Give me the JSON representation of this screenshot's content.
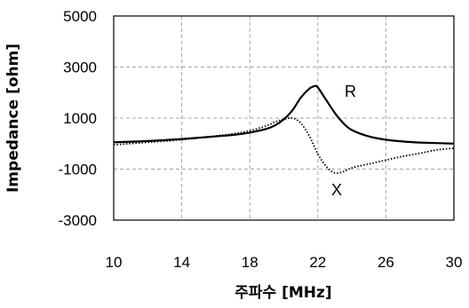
{
  "chart_data": {
    "type": "line",
    "xlabel": "주파수 [MHz]",
    "ylabel": "Impedance [ohm]",
    "xlim": [
      10,
      30
    ],
    "ylim": [
      -3000,
      5000
    ],
    "xticks": [
      "10",
      "14",
      "18",
      "22",
      "26",
      "30"
    ],
    "yticks": [
      "5000",
      "3000",
      "1000",
      "-1000",
      "-3000"
    ],
    "grid": true,
    "series": [
      {
        "name": "R",
        "style": "solid",
        "color": "#000000",
        "x": [
          10,
          12,
          14,
          16,
          17,
          18,
          19,
          19.5,
          20,
          20.5,
          21,
          21.5,
          21.8,
          22,
          22.5,
          23,
          23.5,
          24,
          25,
          26,
          27,
          28,
          30
        ],
        "y": [
          50,
          100,
          180,
          280,
          340,
          430,
          580,
          720,
          950,
          1300,
          1800,
          2150,
          2250,
          2200,
          1700,
          1200,
          800,
          530,
          280,
          150,
          80,
          40,
          0
        ]
      },
      {
        "name": "X",
        "style": "dotted",
        "color": "#000000",
        "x": [
          10,
          12,
          14,
          16,
          17,
          18,
          19,
          19.5,
          20,
          20.5,
          21,
          21.5,
          22,
          22.5,
          23,
          23.5,
          24,
          25,
          26,
          27,
          28,
          29,
          30
        ],
        "y": [
          -50,
          50,
          150,
          300,
          380,
          500,
          700,
          850,
          950,
          1000,
          800,
          300,
          -400,
          -900,
          -1150,
          -1100,
          -950,
          -800,
          -650,
          -500,
          -380,
          -250,
          -180
        ]
      }
    ]
  }
}
